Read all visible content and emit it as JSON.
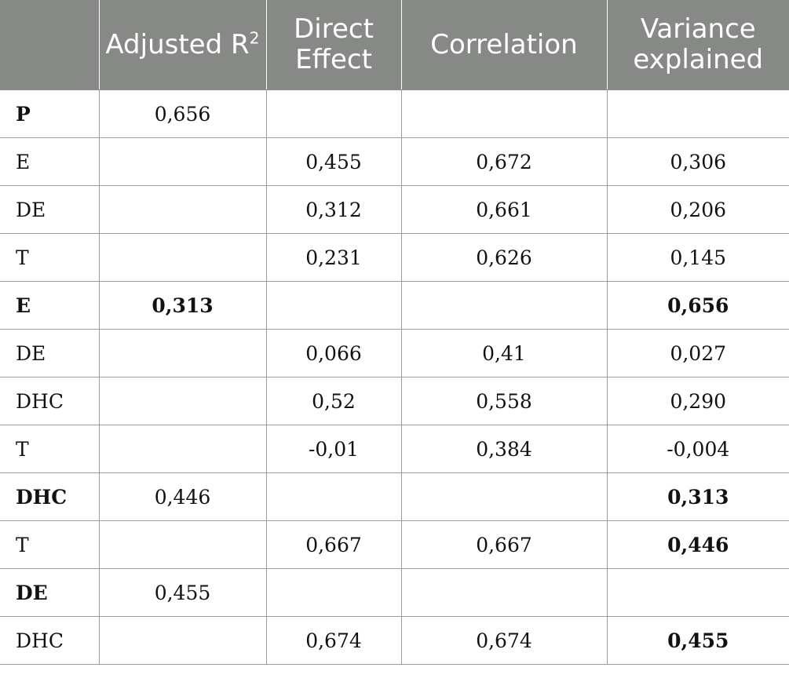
{
  "header": {
    "col0": "",
    "adjusted_r": "Adjusted R",
    "adjusted_sup": "2",
    "direct_effect_line1": "Direct",
    "direct_effect_line2": "Effect",
    "correlation": "Correlation",
    "variance_line1": "Variance",
    "variance_line2": "explained"
  },
  "rows": [
    {
      "label": "P",
      "adj_r2": "0,656",
      "direct": "",
      "corr": "",
      "var": ""
    },
    {
      "label": "E",
      "adj_r2": "",
      "direct": "0,455",
      "corr": "0,672",
      "var": "0,306"
    },
    {
      "label": "DE",
      "adj_r2": "",
      "direct": "0,312",
      "corr": "0,661",
      "var": "0,206"
    },
    {
      "label": "T",
      "adj_r2": "",
      "direct": "0,231",
      "corr": "0,626",
      "var": "0,145"
    },
    {
      "label": "E",
      "adj_r2": "0,313",
      "direct": "",
      "corr": "",
      "var": "0,656"
    },
    {
      "label": "DE",
      "adj_r2": "",
      "direct": "0,066",
      "corr": "0,41",
      "var": "0,027"
    },
    {
      "label": "DHC",
      "adj_r2": "",
      "direct": "0,52",
      "corr": "0,558",
      "var": "0,290"
    },
    {
      "label": "T",
      "adj_r2": "",
      "direct": "-0,01",
      "corr": "0,384",
      "var": "-0,004"
    },
    {
      "label": "DHC",
      "adj_r2": "0,446",
      "direct": "",
      "corr": "",
      "var": "0,313"
    },
    {
      "label": "T",
      "adj_r2": "",
      "direct": "0,667",
      "corr": "0,667",
      "var": "0,446"
    },
    {
      "label": "DE",
      "adj_r2": "0,455",
      "direct": "",
      "corr": "",
      "var": ""
    },
    {
      "label": "DHC",
      "adj_r2": "",
      "direct": "0,674",
      "corr": "0,674",
      "var": "0,455"
    }
  ]
}
